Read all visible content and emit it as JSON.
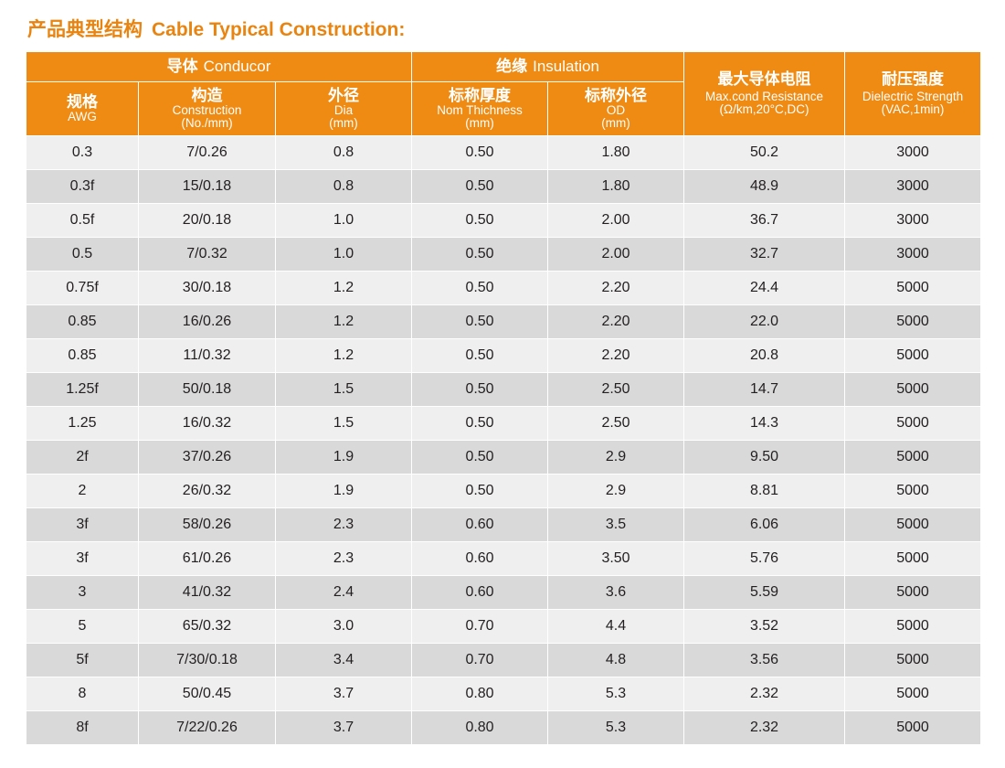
{
  "title": {
    "cn": "产品典型结构",
    "en": "Cable Typical Construction:"
  },
  "groups": {
    "conductor": {
      "cn": "导体",
      "en": "Conducor"
    },
    "insulation": {
      "cn": "绝缘",
      "en": "Insulation"
    }
  },
  "columns": [
    {
      "cn": "规格",
      "en": "AWG",
      "unit": ""
    },
    {
      "cn": "构造",
      "en": "Construction",
      "unit": "(No./mm)"
    },
    {
      "cn": "外径",
      "en": "Dia",
      "unit": "(mm)"
    },
    {
      "cn": "标称厚度",
      "en": "Nom Thichness",
      "unit": "(mm)"
    },
    {
      "cn": "标称外径",
      "en": "OD",
      "unit": "(mm)"
    },
    {
      "cn": "最大导体电阻",
      "en": "Max.cond Resistance",
      "unit": "(Ω/km,20°C,DC)"
    },
    {
      "cn": "耐压强度",
      "en": "Dielectric Strength",
      "unit": "(VAC,1min)"
    }
  ],
  "rows": [
    [
      "0.3",
      "7/0.26",
      "0.8",
      "0.50",
      "1.80",
      "50.2",
      "3000"
    ],
    [
      "0.3f",
      "15/0.18",
      "0.8",
      "0.50",
      "1.80",
      "48.9",
      "3000"
    ],
    [
      "0.5f",
      "20/0.18",
      "1.0",
      "0.50",
      "2.00",
      "36.7",
      "3000"
    ],
    [
      "0.5",
      "7/0.32",
      "1.0",
      "0.50",
      "2.00",
      "32.7",
      "3000"
    ],
    [
      "0.75f",
      "30/0.18",
      "1.2",
      "0.50",
      "2.20",
      "24.4",
      "5000"
    ],
    [
      "0.85",
      "16/0.26",
      "1.2",
      "0.50",
      "2.20",
      "22.0",
      "5000"
    ],
    [
      "0.85",
      "11/0.32",
      "1.2",
      "0.50",
      "2.20",
      "20.8",
      "5000"
    ],
    [
      "1.25f",
      "50/0.18",
      "1.5",
      "0.50",
      "2.50",
      "14.7",
      "5000"
    ],
    [
      "1.25",
      "16/0.32",
      "1.5",
      "0.50",
      "2.50",
      "14.3",
      "5000"
    ],
    [
      "2f",
      "37/0.26",
      "1.9",
      "0.50",
      "2.9",
      "9.50",
      "5000"
    ],
    [
      "2",
      "26/0.32",
      "1.9",
      "0.50",
      "2.9",
      "8.81",
      "5000"
    ],
    [
      "3f",
      "58/0.26",
      "2.3",
      "0.60",
      "3.5",
      "6.06",
      "5000"
    ],
    [
      "3f",
      "61/0.26",
      "2.3",
      "0.60",
      "3.50",
      "5.76",
      "5000"
    ],
    [
      "3",
      "41/0.32",
      "2.4",
      "0.60",
      "3.6",
      "5.59",
      "5000"
    ],
    [
      "5",
      "65/0.32",
      "3.0",
      "0.70",
      "4.4",
      "3.52",
      "5000"
    ],
    [
      "5f",
      "7/30/0.18",
      "3.4",
      "0.70",
      "4.8",
      "3.56",
      "5000"
    ],
    [
      "8",
      "50/0.45",
      "3.7",
      "0.80",
      "5.3",
      "2.32",
      "5000"
    ],
    [
      "8f",
      "7/22/0.26",
      "3.7",
      "0.80",
      "5.3",
      "2.32",
      "5000"
    ]
  ],
  "colors": {
    "header_bg": "#ef8a12",
    "title": "#e8840f",
    "row_light": "#efefef",
    "row_dark": "#d9d9d9"
  }
}
